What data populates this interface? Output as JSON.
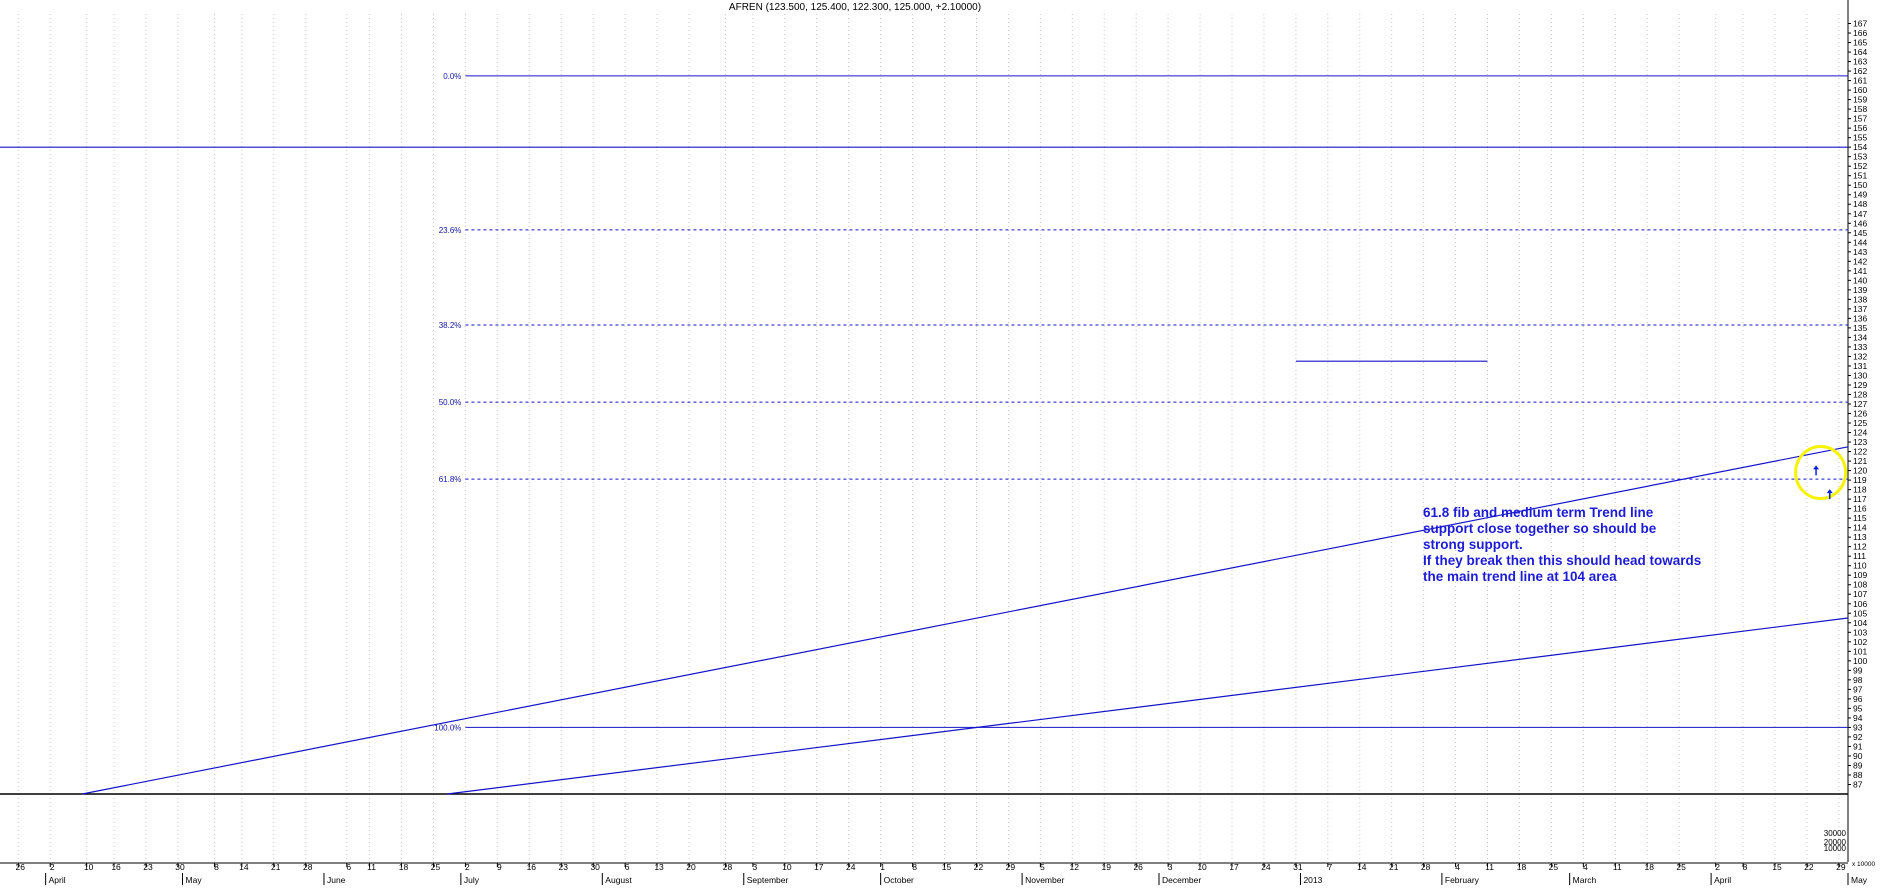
{
  "chart_data": {
    "type": "candlestick",
    "title": "AFREN (123.500, 125.400, 122.300, 125.000, +2.10000)",
    "colors": {
      "up": "#0b21d8",
      "down": "#f20000",
      "line": "#1414c8",
      "grid": "#c8c8c8",
      "highlight": "#f6f300"
    },
    "y_axis": {
      "min": 86,
      "max": 168,
      "ticks_from": 87,
      "ticks_to": 167,
      "step": 1,
      "position": "right"
    },
    "volume_axis": {
      "ticks": [
        "30000",
        "20000",
        "10000"
      ],
      "unit": "x 10000"
    },
    "x_axis": {
      "start": "2012-03-22",
      "end": "2013-05-01",
      "day_ticks": [
        {
          "date": "2012-03-26",
          "label": "26"
        },
        {
          "date": "2012-04-02",
          "label": "2"
        },
        {
          "date": "2012-04-10",
          "label": "10"
        },
        {
          "date": "2012-04-16",
          "label": "16"
        },
        {
          "date": "2012-04-23",
          "label": "23"
        },
        {
          "date": "2012-04-30",
          "label": "30"
        },
        {
          "date": "2012-05-08",
          "label": "8"
        },
        {
          "date": "2012-05-14",
          "label": "14"
        },
        {
          "date": "2012-05-21",
          "label": "21"
        },
        {
          "date": "2012-05-28",
          "label": "28"
        },
        {
          "date": "2012-06-06",
          "label": "6"
        },
        {
          "date": "2012-06-11",
          "label": "11"
        },
        {
          "date": "2012-06-18",
          "label": "18"
        },
        {
          "date": "2012-06-25",
          "label": "25"
        },
        {
          "date": "2012-07-02",
          "label": "2"
        },
        {
          "date": "2012-07-09",
          "label": "9"
        },
        {
          "date": "2012-07-16",
          "label": "16"
        },
        {
          "date": "2012-07-23",
          "label": "23"
        },
        {
          "date": "2012-07-30",
          "label": "30"
        },
        {
          "date": "2012-08-06",
          "label": "6"
        },
        {
          "date": "2012-08-13",
          "label": "13"
        },
        {
          "date": "2012-08-20",
          "label": "20"
        },
        {
          "date": "2012-08-28",
          "label": "28"
        },
        {
          "date": "2012-09-03",
          "label": "3"
        },
        {
          "date": "2012-09-10",
          "label": "10"
        },
        {
          "date": "2012-09-17",
          "label": "17"
        },
        {
          "date": "2012-09-24",
          "label": "24"
        },
        {
          "date": "2012-10-01",
          "label": "1"
        },
        {
          "date": "2012-10-08",
          "label": "8"
        },
        {
          "date": "2012-10-15",
          "label": "15"
        },
        {
          "date": "2012-10-22",
          "label": "22"
        },
        {
          "date": "2012-10-29",
          "label": "29"
        },
        {
          "date": "2012-11-05",
          "label": "5"
        },
        {
          "date": "2012-11-12",
          "label": "12"
        },
        {
          "date": "2012-11-19",
          "label": "19"
        },
        {
          "date": "2012-11-26",
          "label": "26"
        },
        {
          "date": "2012-12-03",
          "label": "3"
        },
        {
          "date": "2012-12-10",
          "label": "10"
        },
        {
          "date": "2012-12-17",
          "label": "17"
        },
        {
          "date": "2012-12-24",
          "label": "24"
        },
        {
          "date": "2012-12-31",
          "label": "31"
        },
        {
          "date": "2013-01-07",
          "label": "7"
        },
        {
          "date": "2013-01-14",
          "label": "14"
        },
        {
          "date": "2013-01-21",
          "label": "21"
        },
        {
          "date": "2013-01-28",
          "label": "28"
        },
        {
          "date": "2013-02-04",
          "label": "4"
        },
        {
          "date": "2013-02-11",
          "label": "11"
        },
        {
          "date": "2013-02-18",
          "label": "18"
        },
        {
          "date": "2013-02-25",
          "label": "25"
        },
        {
          "date": "2013-03-04",
          "label": "4"
        },
        {
          "date": "2013-03-11",
          "label": "11"
        },
        {
          "date": "2013-03-18",
          "label": "18"
        },
        {
          "date": "2013-03-25",
          "label": "25"
        },
        {
          "date": "2013-04-02",
          "label": "2"
        },
        {
          "date": "2013-04-08",
          "label": "8"
        },
        {
          "date": "2013-04-15",
          "label": "15"
        },
        {
          "date": "2013-04-22",
          "label": "22"
        },
        {
          "date": "2013-04-29",
          "label": "29"
        }
      ],
      "month_ticks": [
        {
          "date": "2012-04-01",
          "label": "April"
        },
        {
          "date": "2012-05-01",
          "label": "May"
        },
        {
          "date": "2012-06-01",
          "label": "June"
        },
        {
          "date": "2012-07-01",
          "label": "July"
        },
        {
          "date": "2012-08-01",
          "label": "August"
        },
        {
          "date": "2012-09-01",
          "label": "September"
        },
        {
          "date": "2012-10-01",
          "label": "October"
        },
        {
          "date": "2012-11-01",
          "label": "November"
        },
        {
          "date": "2012-12-01",
          "label": "December"
        },
        {
          "date": "2013-01-01",
          "label": "2013"
        },
        {
          "date": "2013-02-01",
          "label": "February"
        },
        {
          "date": "2013-03-01",
          "label": "March"
        },
        {
          "date": "2013-04-01",
          "label": "April"
        },
        {
          "date": "2013-05-01",
          "label": "May"
        }
      ]
    },
    "fibonacci": {
      "start_date": "2012-07-02",
      "end_date": "2013-05-01",
      "levels": [
        {
          "label": "0.0%",
          "price": 161.5
        },
        {
          "label": "23.6%",
          "price": 145.3
        },
        {
          "label": "38.2%",
          "price": 135.3
        },
        {
          "label": "50.0%",
          "price": 127.2
        },
        {
          "label": "61.8%",
          "price": 119.1
        },
        {
          "label": "100.0%",
          "price": 93.0
        }
      ]
    },
    "horizontal_lines": [
      {
        "price": 154.0,
        "from": "2012-03-22",
        "to": "2013-05-01"
      },
      {
        "price": 131.5,
        "from": "2012-12-31",
        "to": "2013-02-11"
      }
    ],
    "trend_lines": [
      {
        "from": {
          "date": "2012-04-09",
          "price": 86
        },
        "to": {
          "date": "2013-05-01",
          "price": 122.5
        }
      },
      {
        "from": {
          "date": "2012-06-28",
          "price": 86
        },
        "to": {
          "date": "2013-05-01",
          "price": 104.5
        }
      }
    ],
    "highlight_circle": {
      "date": "2013-04-25",
      "price": 119.8
    },
    "arrows": [
      {
        "date": "2013-04-24",
        "price": 119.5
      },
      {
        "date": "2013-04-27",
        "price": 117.0
      }
    ],
    "annotation": [
      "61.8 fib and medium term Trend line",
      "support close together so should be",
      "strong support.",
      "If they break then this should head towards",
      "the main trend line at 104 area"
    ],
    "ohlc": [],
    "volume": []
  }
}
